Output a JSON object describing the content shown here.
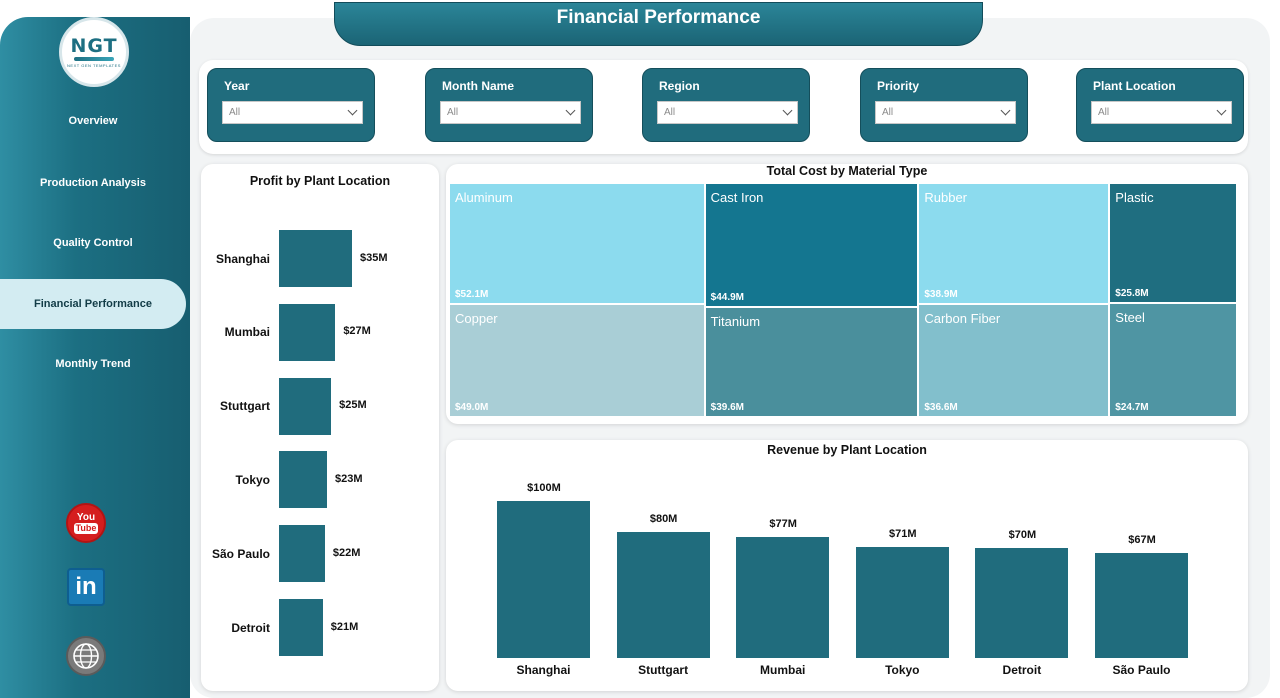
{
  "app": {
    "title": "Financial Performance",
    "logo_text": "NGT",
    "logo_subtext": "NEXT GEN TEMPLATES"
  },
  "sidebar": {
    "items": [
      {
        "label": "Overview",
        "active": false
      },
      {
        "label": "Production Analysis",
        "active": false
      },
      {
        "label": "Quality Control",
        "active": false
      },
      {
        "label": "Financial Performance",
        "active": true
      },
      {
        "label": "Monthly Trend",
        "active": false
      }
    ],
    "social": [
      {
        "icon": "youtube-icon",
        "line1": "You",
        "line2": "Tube"
      },
      {
        "icon": "linkedin-icon",
        "text": "in"
      },
      {
        "icon": "website-globe-icon"
      }
    ]
  },
  "filters": [
    {
      "label": "Year",
      "value": "All"
    },
    {
      "label": "Month Name",
      "value": "All"
    },
    {
      "label": "Region",
      "value": "All"
    },
    {
      "label": "Priority",
      "value": "All"
    },
    {
      "label": "Plant Location",
      "value": "All"
    }
  ],
  "colors": {
    "accent": "#206c7d",
    "tile_aluminum": "#8cdbee",
    "tile_cast_iron": "#147690",
    "tile_rubber": "#8cdbee",
    "tile_plastic": "#1f6e80",
    "tile_copper": "#a9ced6",
    "tile_titanium": "#4a8f9c",
    "tile_carbon_fiber": "#82bfcc",
    "tile_steel": "#4f95a3"
  },
  "chart_data": [
    {
      "type": "bar",
      "orientation": "horizontal",
      "title": "Profit by Plant Location",
      "categories": [
        "Shanghai",
        "Mumbai",
        "Stuttgart",
        "Tokyo",
        "São Paulo",
        "Detroit"
      ],
      "values": [
        35,
        27,
        25,
        23,
        22,
        21
      ],
      "value_labels": [
        "$35M",
        "$27M",
        "$25M",
        "$23M",
        "$22M",
        "$21M"
      ],
      "unit": "$M",
      "xlim": [
        0,
        35
      ]
    },
    {
      "type": "treemap",
      "title": "Total Cost by Material Type",
      "categories": [
        "Aluminum",
        "Copper",
        "Cast Iron",
        "Titanium",
        "Rubber",
        "Carbon Fiber",
        "Plastic",
        "Steel"
      ],
      "values": [
        52.1,
        49.0,
        44.9,
        39.6,
        38.9,
        36.6,
        25.8,
        24.7
      ],
      "value_labels": [
        "$52.1M",
        "$49.0M",
        "$44.9M",
        "$39.6M",
        "$38.9M",
        "$36.6M",
        "$25.8M",
        "$24.7M"
      ],
      "unit": "$M"
    },
    {
      "type": "bar",
      "orientation": "vertical",
      "title": "Revenue by Plant Location",
      "categories": [
        "Shanghai",
        "Stuttgart",
        "Mumbai",
        "Tokyo",
        "Detroit",
        "São Paulo"
      ],
      "values": [
        100,
        80,
        77,
        71,
        70,
        67
      ],
      "value_labels": [
        "$100M",
        "$80M",
        "$77M",
        "$71M",
        "$70M",
        "$67M"
      ],
      "unit": "$M",
      "ylim": [
        0,
        100
      ]
    }
  ]
}
